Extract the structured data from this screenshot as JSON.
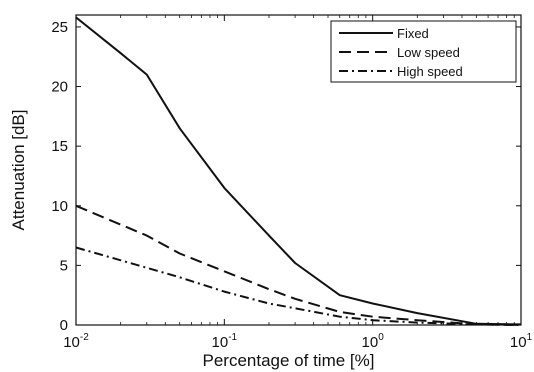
{
  "chart_data": {
    "type": "line",
    "title": "",
    "xlabel": "Percentage of time [%]",
    "ylabel": "Attenuation [dB]",
    "xscale": "log",
    "xlim": [
      0.01,
      10
    ],
    "ylim": [
      0,
      26
    ],
    "yticks": [
      0,
      5,
      10,
      15,
      20,
      25
    ],
    "xticks": [
      {
        "value": 0.01,
        "base": "10",
        "exp": "-2"
      },
      {
        "value": 0.1,
        "base": "10",
        "exp": "-1"
      },
      {
        "value": 1,
        "base": "10",
        "exp": "0"
      },
      {
        "value": 10,
        "base": "10",
        "exp": "1"
      }
    ],
    "grid": false,
    "legend_position": "top-right",
    "series": [
      {
        "name": "Fixed",
        "style": "solid",
        "color": "#111111",
        "points": [
          [
            0.01,
            25.8
          ],
          [
            0.02,
            22.8
          ],
          [
            0.03,
            21.0
          ],
          [
            0.05,
            16.5
          ],
          [
            0.1,
            11.5
          ],
          [
            0.2,
            7.5
          ],
          [
            0.3,
            5.2
          ],
          [
            0.6,
            2.5
          ],
          [
            1,
            1.8
          ],
          [
            2,
            1.0
          ],
          [
            5,
            0.1
          ],
          [
            10,
            0.05
          ]
        ]
      },
      {
        "name": "Low speed",
        "style": "dashed",
        "color": "#111111",
        "points": [
          [
            0.01,
            10.0
          ],
          [
            0.03,
            7.5
          ],
          [
            0.05,
            6.0
          ],
          [
            0.1,
            4.5
          ],
          [
            0.2,
            3.0
          ],
          [
            0.3,
            2.2
          ],
          [
            0.6,
            1.1
          ],
          [
            1,
            0.7
          ],
          [
            2,
            0.4
          ],
          [
            5,
            0.05
          ],
          [
            10,
            0.0
          ]
        ]
      },
      {
        "name": "High speed",
        "style": "dashdot",
        "color": "#111111",
        "points": [
          [
            0.01,
            6.5
          ],
          [
            0.03,
            4.8
          ],
          [
            0.05,
            4.0
          ],
          [
            0.1,
            2.8
          ],
          [
            0.2,
            1.8
          ],
          [
            0.3,
            1.4
          ],
          [
            0.6,
            0.7
          ],
          [
            1,
            0.4
          ],
          [
            2,
            0.2
          ],
          [
            5,
            0.05
          ],
          [
            10,
            0.0
          ]
        ]
      }
    ]
  }
}
